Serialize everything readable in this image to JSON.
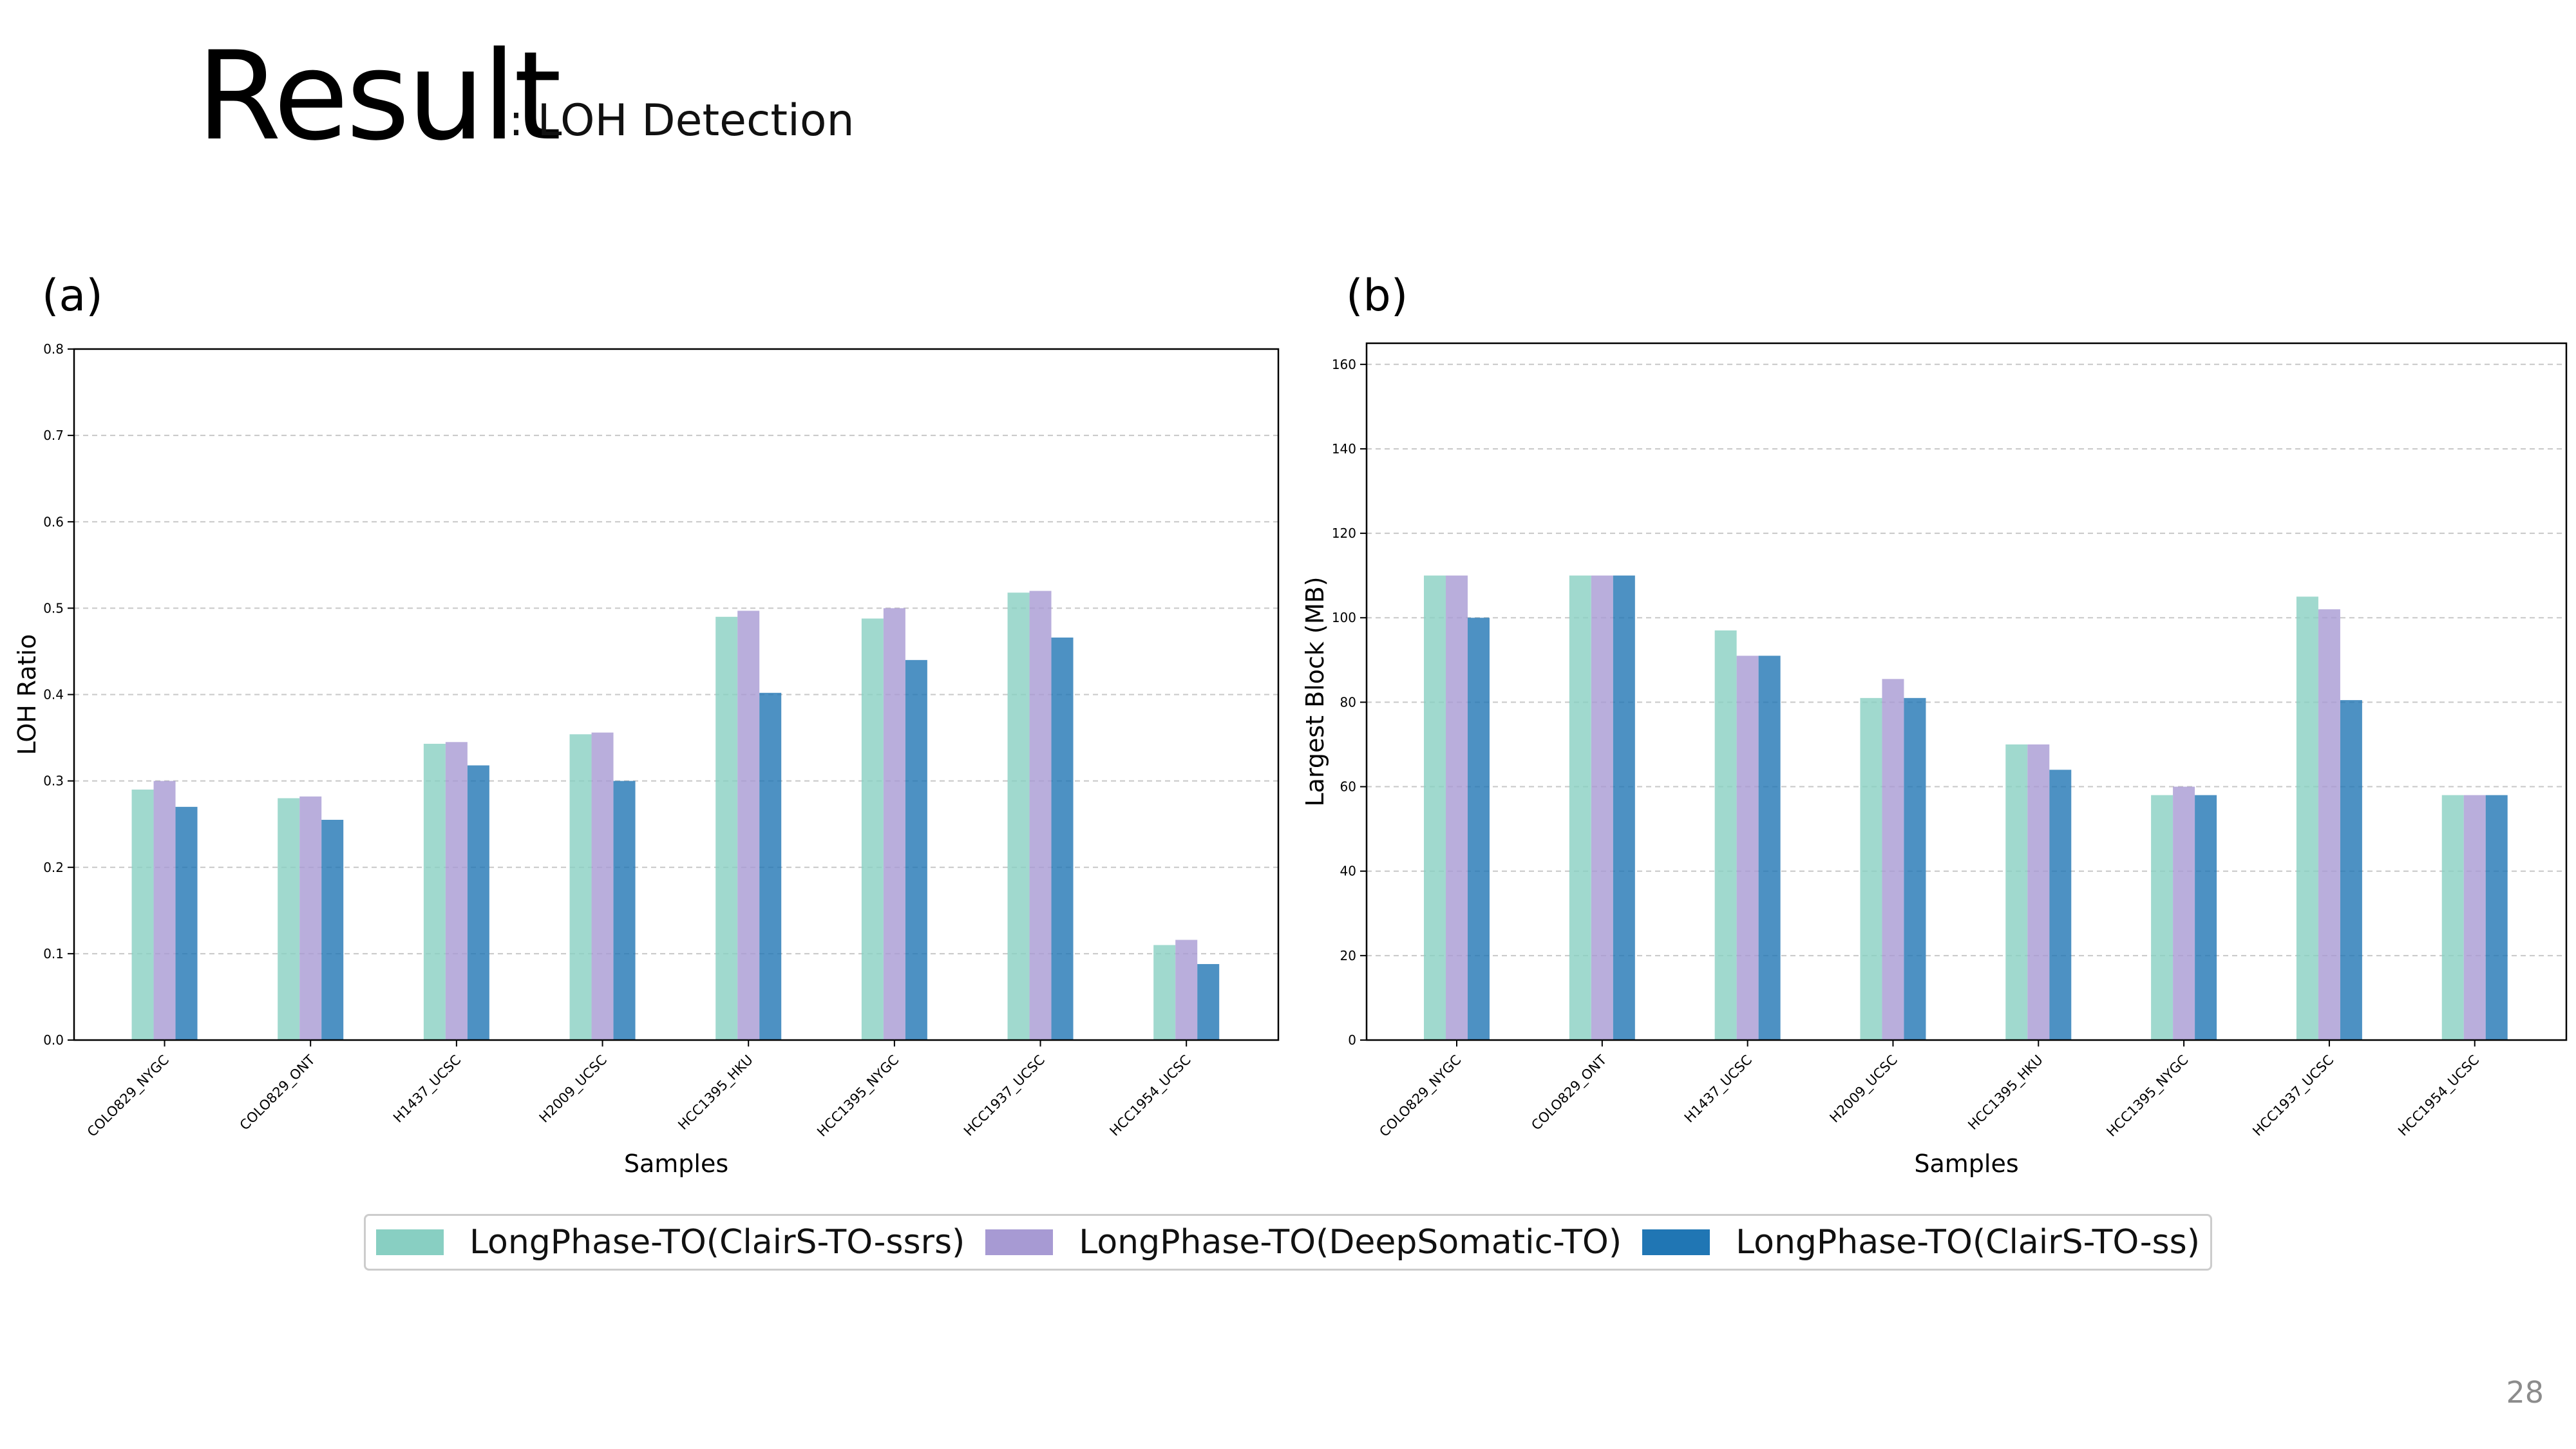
{
  "slide": {
    "title": "Result",
    "subtitle": ": LOH Detection",
    "page_number": "28"
  },
  "panels": {
    "a_label": "(a)",
    "b_label": "(b)"
  },
  "legend": [
    {
      "name": "LongPhase-TO(ClairS-TO-ssrs)",
      "color": "#88cfc2"
    },
    {
      "name": "LongPhase-TO(DeepSomatic-TO)",
      "color": "#a79ad3"
    },
    {
      "name": "LongPhase-TO(ClairS-TO-ss)",
      "color": "#2076b4"
    }
  ],
  "chart_data": [
    {
      "type": "bar",
      "title": "",
      "xlabel": "Samples",
      "ylabel": "LOH Ratio",
      "ylim": [
        0,
        0.8
      ],
      "yticks": [
        0.0,
        0.1,
        0.2,
        0.3,
        0.4,
        0.5,
        0.6,
        0.7,
        0.8
      ],
      "ytick_labels": [
        "0.0",
        "0.1",
        "0.2",
        "0.3",
        "0.4",
        "0.5",
        "0.6",
        "0.7",
        "0.8"
      ],
      "grid": "horizontal dashed",
      "categories": [
        "COLO829_NYGC",
        "COLO829_ONT",
        "H1437_UCSC",
        "H2009_UCSC",
        "HCC1395_HKU",
        "HCC1395_NYGC",
        "HCC1937_UCSC",
        "HCC1954_UCSC"
      ],
      "series": [
        {
          "name": "LongPhase-TO(ClairS-TO-ssrs)",
          "color": "#88cfc2",
          "values": [
            0.29,
            0.28,
            0.343,
            0.354,
            0.49,
            0.488,
            0.518,
            0.11
          ]
        },
        {
          "name": "LongPhase-TO(DeepSomatic-TO)",
          "color": "#a79ad3",
          "values": [
            0.3,
            0.282,
            0.345,
            0.356,
            0.497,
            0.5,
            0.52,
            0.116
          ]
        },
        {
          "name": "LongPhase-TO(ClairS-TO-ss)",
          "color": "#2076b4",
          "values": [
            0.27,
            0.255,
            0.318,
            0.3,
            0.402,
            0.44,
            0.466,
            0.088
          ]
        }
      ]
    },
    {
      "type": "bar",
      "title": "",
      "xlabel": "Samples",
      "ylabel": "Largest Block (MB)",
      "ylim": [
        0,
        165
      ],
      "yticks": [
        0,
        20,
        40,
        60,
        80,
        100,
        120,
        140,
        160
      ],
      "ytick_labels": [
        "0",
        "20",
        "40",
        "60",
        "80",
        "100",
        "120",
        "140",
        "160"
      ],
      "grid": "horizontal dashed",
      "categories": [
        "COLO829_NYGC",
        "COLO829_ONT",
        "H1437_UCSC",
        "H2009_UCSC",
        "HCC1395_HKU",
        "HCC1395_NYGC",
        "HCC1937_UCSC",
        "HCC1954_UCSC"
      ],
      "series": [
        {
          "name": "LongPhase-TO(ClairS-TO-ssrs)",
          "color": "#88cfc2",
          "values": [
            110,
            110,
            97,
            81,
            70,
            58,
            105,
            58
          ]
        },
        {
          "name": "LongPhase-TO(DeepSomatic-TO)",
          "color": "#a79ad3",
          "values": [
            110,
            110,
            91,
            85.5,
            70,
            60,
            102,
            58
          ]
        },
        {
          "name": "LongPhase-TO(ClairS-TO-ss)",
          "color": "#2076b4",
          "values": [
            100,
            110,
            91,
            81,
            64,
            58,
            80.5,
            58
          ]
        }
      ]
    }
  ]
}
